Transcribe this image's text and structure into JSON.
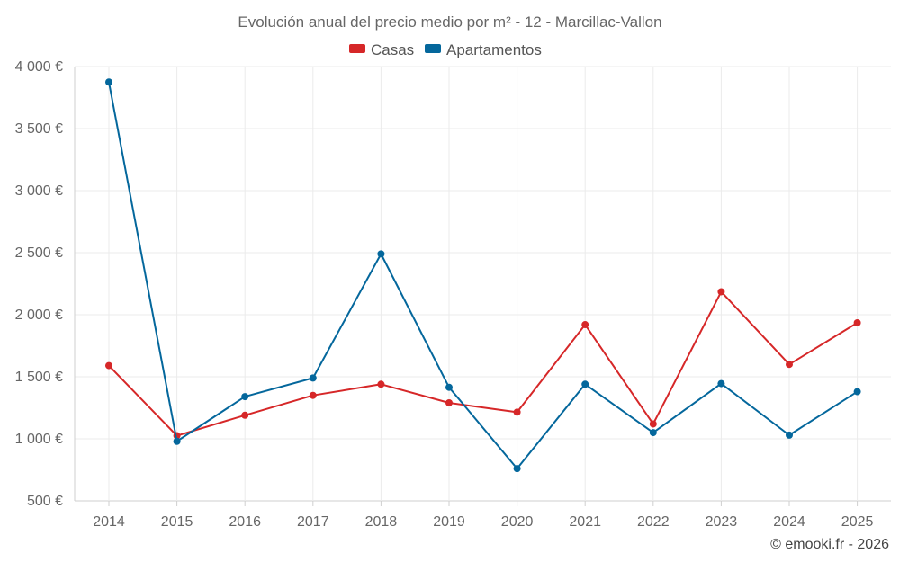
{
  "chart_data": {
    "type": "line",
    "title": "Evolución anual del precio medio por m² - 12 - Marcillac-Vallon",
    "categories": [
      "2014",
      "2015",
      "2016",
      "2017",
      "2018",
      "2019",
      "2020",
      "2021",
      "2022",
      "2023",
      "2024",
      "2025"
    ],
    "series": [
      {
        "name": "Casas",
        "color": "#d62728",
        "values": [
          1590,
          1025,
          1190,
          1350,
          1440,
          1290,
          1215,
          1920,
          1120,
          2185,
          1600,
          1935
        ]
      },
      {
        "name": "Apartamentos",
        "color": "#04679c",
        "values": [
          3875,
          980,
          1340,
          1490,
          2490,
          1415,
          760,
          1440,
          1050,
          1445,
          1030,
          1380
        ]
      }
    ],
    "ylim": [
      500,
      4000
    ],
    "yticks": [
      {
        "value": 500,
        "label": "500 €"
      },
      {
        "value": 1000,
        "label": "1 000 €"
      },
      {
        "value": 1500,
        "label": "1 500 €"
      },
      {
        "value": 2000,
        "label": "2 000 €"
      },
      {
        "value": 2500,
        "label": "2 500 €"
      },
      {
        "value": 3000,
        "label": "3 000 €"
      },
      {
        "value": 3500,
        "label": "3 500 €"
      },
      {
        "value": 4000,
        "label": "4 000 €"
      }
    ],
    "xlabel": "",
    "ylabel": "",
    "grid": true,
    "legend_position": "top-center"
  },
  "credit": "© emooki.fr - 2026"
}
